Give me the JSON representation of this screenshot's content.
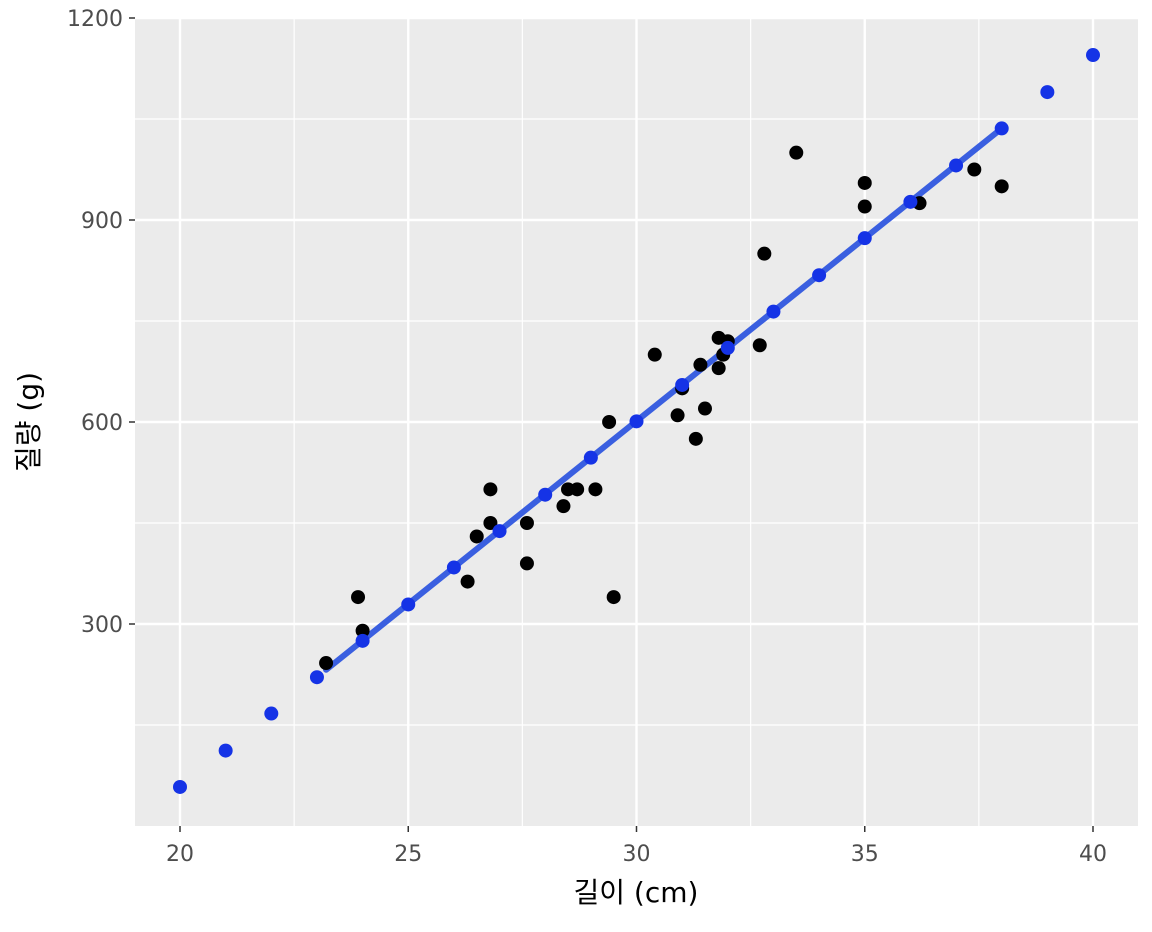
{
  "chart_data": {
    "type": "scatter",
    "title": "",
    "xlabel": "길이 (cm)",
    "ylabel": "질량 (g)",
    "xlim": [
      18,
      40.5
    ],
    "ylim": [
      0,
      1200
    ],
    "x_ticks": [
      {
        "value": 20,
        "label": "20"
      },
      {
        "value": 25,
        "label": "25"
      },
      {
        "value": 30,
        "label": "30"
      },
      {
        "value": 35,
        "label": "35"
      },
      {
        "value": 40,
        "label": "40"
      }
    ],
    "y_ticks": [
      {
        "value": 300,
        "label": "300"
      },
      {
        "value": 600,
        "label": "600"
      },
      {
        "value": 900,
        "label": "900"
      },
      {
        "value": 1200,
        "label": "1200"
      }
    ],
    "y_minor_gridlines": [
      150,
      450,
      750,
      1050
    ],
    "x_minor_gridlines": [
      22.5,
      27.5,
      32.5,
      37.5
    ],
    "grid": true,
    "background": "#ebebeb",
    "series": [
      {
        "color": "#000000",
        "points": [
          {
            "x": 23.2,
            "y": 242
          },
          {
            "x": 23.9,
            "y": 340
          },
          {
            "x": 24.0,
            "y": 290
          },
          {
            "x": 26.3,
            "y": 363
          },
          {
            "x": 26.5,
            "y": 430
          },
          {
            "x": 26.8,
            "y": 450
          },
          {
            "x": 26.8,
            "y": 500
          },
          {
            "x": 27.6,
            "y": 390
          },
          {
            "x": 27.6,
            "y": 450
          },
          {
            "x": 28.4,
            "y": 475
          },
          {
            "x": 28.5,
            "y": 500
          },
          {
            "x": 28.7,
            "y": 500
          },
          {
            "x": 29.1,
            "y": 500
          },
          {
            "x": 29.4,
            "y": 600
          },
          {
            "x": 29.5,
            "y": 340
          },
          {
            "x": 30.4,
            "y": 700
          },
          {
            "x": 30.9,
            "y": 610
          },
          {
            "x": 31.0,
            "y": 650
          },
          {
            "x": 31.3,
            "y": 575
          },
          {
            "x": 31.4,
            "y": 685
          },
          {
            "x": 31.5,
            "y": 620
          },
          {
            "x": 31.8,
            "y": 680
          },
          {
            "x": 31.8,
            "y": 725
          },
          {
            "x": 31.9,
            "y": 700
          },
          {
            "x": 32.0,
            "y": 720
          },
          {
            "x": 32.7,
            "y": 714
          },
          {
            "x": 32.8,
            "y": 850
          },
          {
            "x": 33.5,
            "y": 1000
          },
          {
            "x": 35.0,
            "y": 920
          },
          {
            "x": 35.0,
            "y": 955
          },
          {
            "x": 36.2,
            "y": 925
          },
          {
            "x": 37.4,
            "y": 975
          },
          {
            "x": 38.0,
            "y": 950
          }
        ]
      },
      {
        "color": "#1533e6",
        "points": [
          {
            "x": 20,
            "y": 58
          },
          {
            "x": 21,
            "y": 112
          },
          {
            "x": 22,
            "y": 167
          },
          {
            "x": 23,
            "y": 221
          },
          {
            "x": 24,
            "y": 275
          },
          {
            "x": 25,
            "y": 329
          },
          {
            "x": 26,
            "y": 384
          },
          {
            "x": 27,
            "y": 438
          },
          {
            "x": 28,
            "y": 492
          },
          {
            "x": 29,
            "y": 547
          },
          {
            "x": 30,
            "y": 601
          },
          {
            "x": 31,
            "y": 655
          },
          {
            "x": 32,
            "y": 710
          },
          {
            "x": 33,
            "y": 764
          },
          {
            "x": 34,
            "y": 818
          },
          {
            "x": 35,
            "y": 873
          },
          {
            "x": 36,
            "y": 927
          },
          {
            "x": 37,
            "y": 981
          },
          {
            "x": 38,
            "y": 1036
          },
          {
            "x": 39,
            "y": 1090
          },
          {
            "x": 40,
            "y": 1145
          }
        ]
      }
    ],
    "fit_line": {
      "color": "#3a5fe0",
      "x": [
        23.2,
        38.0
      ],
      "y": [
        232,
        1036
      ]
    }
  }
}
